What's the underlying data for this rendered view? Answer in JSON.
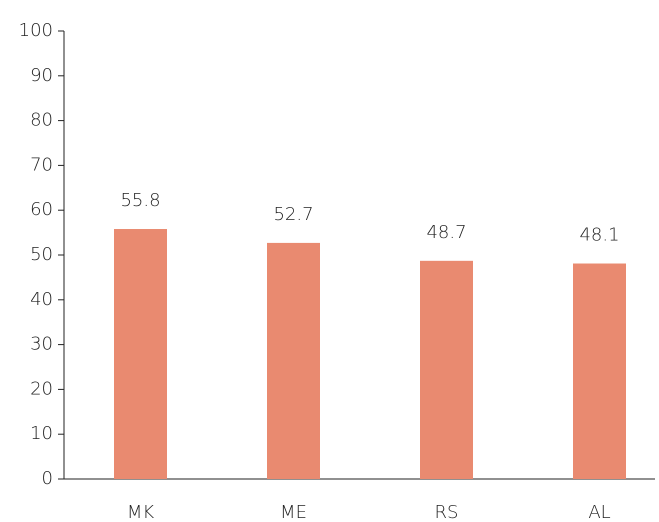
{
  "chart_data": {
    "type": "bar",
    "categories": [
      "MK",
      "ME",
      "RS",
      "AL"
    ],
    "values": [
      55.8,
      52.7,
      48.7,
      48.1
    ],
    "color": "#e98a70",
    "ylim": [
      0,
      100
    ],
    "yticks": [
      0,
      10,
      20,
      30,
      40,
      50,
      60,
      70,
      80,
      90,
      100
    ],
    "grid": false
  }
}
